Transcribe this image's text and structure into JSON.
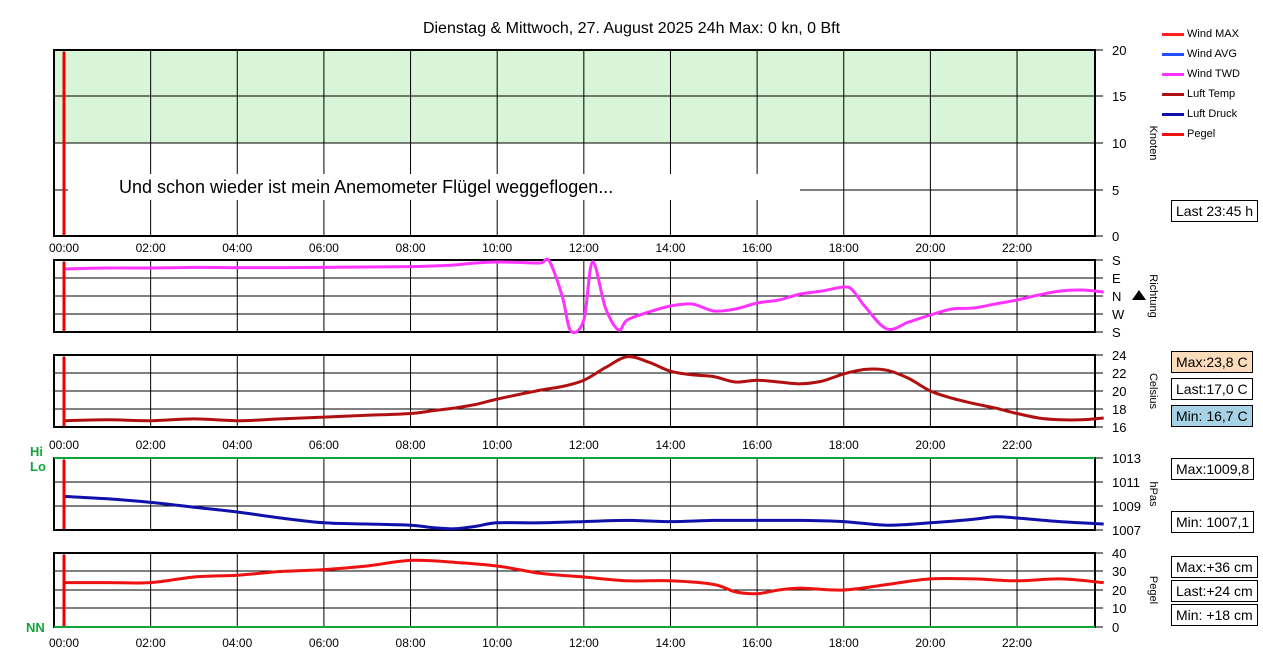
{
  "title": "Dienstag & Mittwoch, 27. August 2025 24h Max: 0 kn, 0 Bft",
  "note": "Und schon wieder ist mein Anemometer Flügel weggeflogen...",
  "time_ticks": [
    "00:00",
    "02:00",
    "04:00",
    "06:00",
    "08:00",
    "10:00",
    "12:00",
    "14:00",
    "16:00",
    "18:00",
    "20:00",
    "22:00"
  ],
  "legend": [
    {
      "label": "Wind MAX",
      "color": "#ff2020"
    },
    {
      "label": "Wind AVG",
      "color": "#2050ff"
    },
    {
      "label": "Wind TWD",
      "color": "#ff33ff"
    },
    {
      "label": "Luft Temp",
      "color": "#b01010"
    },
    {
      "label": "Luft Druck",
      "color": "#1010aa"
    },
    {
      "label": "Pegel",
      "color": "#ee1111"
    }
  ],
  "boxes": {
    "wind_last": "Last 23:45 h",
    "temp_max": "Max:23,8 C",
    "temp_last": "Last:17,0 C",
    "temp_min": "Min: 16,7 C",
    "press_max": "Max:1009,8",
    "press_min": "Min: 1007,1",
    "pegel_max": "Max:+36 cm",
    "pegel_last": "Last:+24 cm",
    "pegel_min": "Min: +18 cm"
  },
  "hilo": {
    "hi": "Hi",
    "lo": "Lo",
    "nn": "NN"
  },
  "colors": {
    "temp_max_bg": "#fadcbc",
    "temp_min_bg": "#a6d2e6",
    "green_zone": "#d8f5d8",
    "hi_lo": "#12a33a"
  },
  "chart_data": [
    {
      "type": "line",
      "name": "wind",
      "ylabel": "Knoten",
      "ylim": [
        0,
        20
      ],
      "yticks": [
        "0",
        "5",
        "10",
        "15",
        "20"
      ],
      "shaded_range": [
        10,
        20
      ],
      "series": []
    },
    {
      "type": "line",
      "name": "direction",
      "ylabel": "Richtung",
      "yticks": [
        "S",
        "W",
        "N",
        "E",
        "S"
      ],
      "ylim": [
        0,
        360
      ],
      "x": [
        0,
        1,
        2,
        3,
        4,
        5,
        6,
        7,
        8,
        8.5,
        9,
        9.5,
        10,
        10.5,
        11,
        11.2,
        11.5,
        11.7,
        12,
        12.2,
        12.5,
        12.8,
        13,
        13.5,
        14,
        14.5,
        15,
        15.5,
        16,
        16.5,
        17,
        17.5,
        18,
        18.2,
        18.5,
        19,
        19.5,
        20,
        20.5,
        21,
        21.5,
        22,
        22.5,
        23,
        23.5,
        24
      ],
      "series": [
        {
          "name": "Wind TWD",
          "values": [
            315,
            320,
            320,
            323,
            322,
            322,
            323,
            325,
            327,
            330,
            335,
            345,
            350,
            348,
            345,
            355,
            180,
            5,
            60,
            350,
            120,
            10,
            60,
            100,
            130,
            140,
            105,
            115,
            145,
            160,
            190,
            205,
            225,
            210,
            125,
            15,
            50,
            85,
            115,
            120,
            140,
            160,
            185,
            205,
            210,
            200
          ]
        }
      ]
    },
    {
      "type": "line",
      "name": "temperature",
      "ylabel": "Celsius",
      "ylim": [
        16,
        24
      ],
      "yticks": [
        "16",
        "18",
        "20",
        "22",
        "24"
      ],
      "x": [
        0,
        1,
        2,
        3,
        4,
        5,
        6,
        7,
        8,
        8.5,
        9,
        9.5,
        10,
        11,
        11.5,
        12,
        12.5,
        13,
        13.5,
        14,
        14.5,
        15,
        15.5,
        16,
        16.5,
        17,
        17.5,
        18,
        18.5,
        19,
        19.5,
        20,
        20.5,
        21,
        21.5,
        22,
        22.5,
        23,
        23.5,
        24
      ],
      "series": [
        {
          "name": "Luft Temp",
          "values": [
            16.7,
            16.8,
            16.7,
            16.9,
            16.7,
            16.9,
            17.1,
            17.3,
            17.5,
            17.8,
            18.1,
            18.5,
            19.1,
            20.1,
            20.5,
            21.2,
            22.6,
            23.8,
            23.2,
            22.2,
            21.8,
            21.6,
            21.0,
            21.2,
            21.0,
            20.8,
            21.1,
            21.9,
            22.4,
            22.3,
            21.4,
            20.0,
            19.2,
            18.6,
            18.1,
            17.5,
            17.0,
            16.8,
            16.8,
            17.0
          ]
        }
      ]
    },
    {
      "type": "line",
      "name": "pressure",
      "ylabel": "hPas",
      "ylim": [
        1007,
        1013
      ],
      "yticks": [
        "1007",
        "1009",
        "1011",
        "1013"
      ],
      "x": [
        0,
        1,
        2,
        3,
        4,
        5,
        6,
        7,
        8,
        8.5,
        9,
        9.5,
        10,
        11,
        12,
        13,
        14,
        15,
        16,
        17,
        18,
        19,
        20,
        21,
        21.5,
        22,
        23,
        24
      ],
      "series": [
        {
          "name": "Luft Druck",
          "values": [
            1009.8,
            1009.6,
            1009.3,
            1008.9,
            1008.5,
            1008.0,
            1007.6,
            1007.5,
            1007.4,
            1007.2,
            1007.1,
            1007.3,
            1007.6,
            1007.6,
            1007.7,
            1007.8,
            1007.7,
            1007.8,
            1007.8,
            1007.8,
            1007.7,
            1007.4,
            1007.6,
            1007.9,
            1008.1,
            1008.0,
            1007.7,
            1007.5
          ]
        }
      ]
    },
    {
      "type": "line",
      "name": "pegel",
      "ylabel": "Pegel",
      "ylim": [
        0,
        40
      ],
      "yticks": [
        "0",
        "10",
        "20",
        "30",
        "40"
      ],
      "x": [
        0,
        1,
        2,
        3,
        4,
        5,
        6,
        7,
        8,
        9,
        10,
        11,
        12,
        13,
        14,
        15,
        15.5,
        16,
        16.5,
        17,
        18,
        19,
        20,
        21,
        22,
        23,
        24
      ],
      "series": [
        {
          "name": "Pegel",
          "values": [
            24,
            24,
            24,
            27,
            28,
            30,
            31,
            33,
            36,
            35,
            33,
            29,
            27,
            25,
            25,
            23,
            19,
            18,
            20,
            21,
            20,
            23,
            26,
            26,
            25,
            26,
            24
          ]
        }
      ]
    }
  ]
}
